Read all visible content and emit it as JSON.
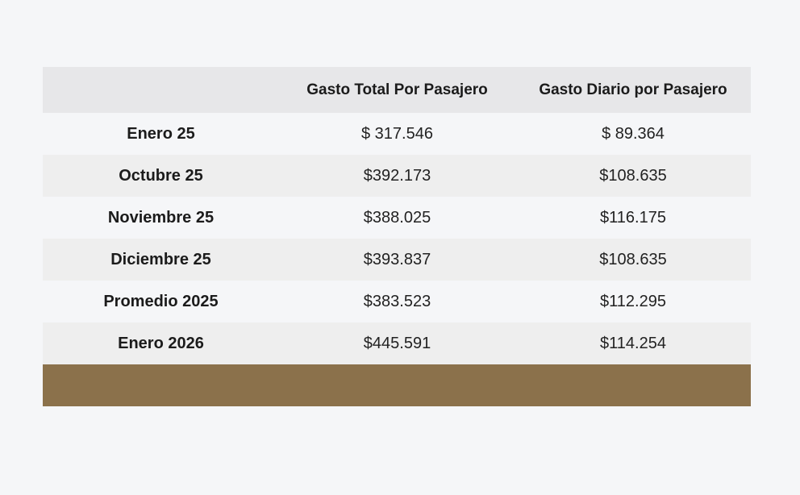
{
  "table": {
    "columns": [
      "",
      "Gasto Total Por Pasajero",
      "Gasto Diario por Pasajero"
    ],
    "rows": [
      {
        "label": "Enero 25",
        "total": "$ 317.546",
        "daily": "$ 89.364"
      },
      {
        "label": "Octubre 25",
        "total": "$392.173",
        "daily": "$108.635"
      },
      {
        "label": "Noviembre 25",
        "total": "$388.025",
        "daily": "$116.175"
      },
      {
        "label": "Diciembre 25",
        "total": "$393.837",
        "daily": "$108.635"
      },
      {
        "label": "Promedio 2025",
        "total": "$383.523",
        "daily": "$112.295"
      },
      {
        "label": "Enero 2026",
        "total": "$445.591",
        "daily": "$114.254"
      }
    ]
  },
  "colors": {
    "page_background": "#f5f6f8",
    "header_background": "#e7e7e9",
    "alt_row_background": "#eeeeee",
    "footer_band": "#8b714b"
  }
}
